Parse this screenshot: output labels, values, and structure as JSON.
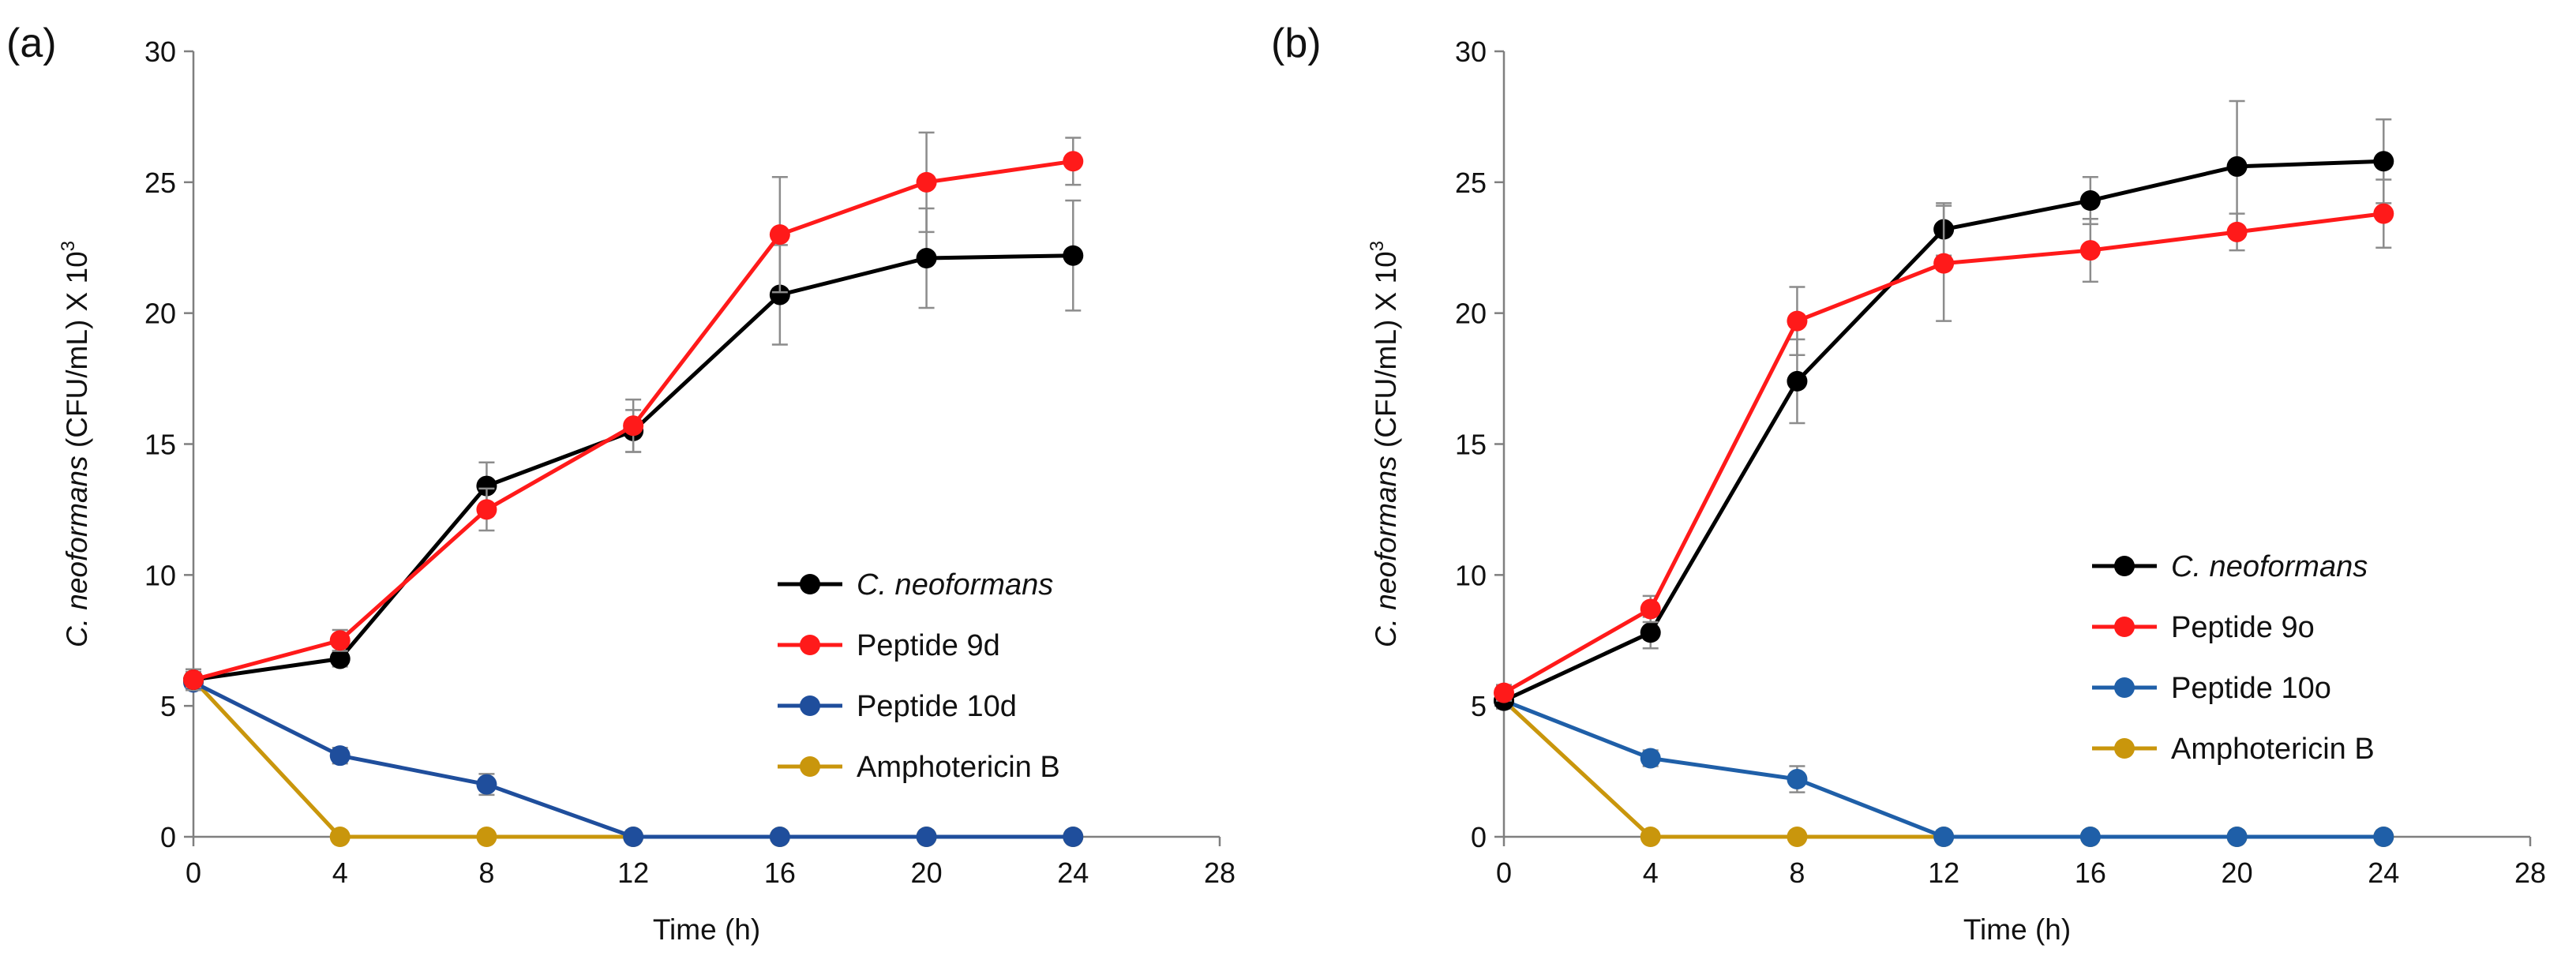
{
  "chart_data": [
    {
      "type": "line",
      "panel_label": "(a)",
      "xlabel": "Time (h)",
      "ylabel": {
        "italic": "C. neoformans",
        "rest": " (CFU/mL) X 10",
        "sup": "3"
      },
      "xlim": [
        0,
        28
      ],
      "ylim": [
        0,
        30
      ],
      "x_ticks": [
        0,
        4,
        8,
        12,
        16,
        20,
        24,
        28
      ],
      "y_ticks": [
        0,
        5,
        10,
        15,
        20,
        25,
        30
      ],
      "legend_position": "center-right",
      "x": [
        0,
        4,
        8,
        12,
        16,
        20,
        24
      ],
      "series": [
        {
          "name": "C. neoformans",
          "italic": true,
          "color": "#000000",
          "values": [
            6.0,
            6.8,
            13.4,
            15.5,
            20.7,
            22.1,
            22.2
          ],
          "errors": [
            0.4,
            0.3,
            0.9,
            0.8,
            1.9,
            1.9,
            2.1
          ]
        },
        {
          "name": "Peptide 9d",
          "italic": false,
          "color": "#ff1a1a",
          "values": [
            6.0,
            7.5,
            12.5,
            15.7,
            23.0,
            25.0,
            25.8
          ],
          "errors": [
            0.3,
            0.4,
            0.8,
            1.0,
            2.2,
            1.9,
            0.9
          ]
        },
        {
          "name": "Peptide 10d",
          "italic": false,
          "color": "#1f4e9c",
          "values": [
            5.9,
            3.1,
            2.0,
            0,
            0,
            0,
            0
          ],
          "errors": [
            0.3,
            0.3,
            0.4,
            0,
            0,
            0,
            0
          ]
        },
        {
          "name": "Amphotericin B",
          "italic": false,
          "color": "#c9960c",
          "values": [
            6.0,
            0,
            0,
            0,
            0,
            0,
            0
          ],
          "errors": [
            0,
            0,
            0,
            0,
            0,
            0,
            0
          ]
        }
      ]
    },
    {
      "type": "line",
      "panel_label": "(b)",
      "xlabel": "Time (h)",
      "ylabel": {
        "italic": "C. neoformans",
        "rest": " (CFU/mL) X 10",
        "sup": "3"
      },
      "xlim": [
        0,
        28
      ],
      "ylim": [
        0,
        30
      ],
      "x_ticks": [
        0,
        4,
        8,
        12,
        16,
        20,
        24,
        28
      ],
      "y_ticks": [
        0,
        5,
        10,
        15,
        20,
        25,
        30
      ],
      "legend_position": "center-right",
      "x": [
        0,
        4,
        8,
        12,
        16,
        20,
        24
      ],
      "series": [
        {
          "name": "C. neoformans",
          "italic": true,
          "color": "#000000",
          "values": [
            5.2,
            7.8,
            17.4,
            23.2,
            24.3,
            25.6,
            25.8
          ],
          "errors": [
            0.3,
            0.6,
            1.6,
            1.0,
            0.9,
            2.5,
            1.6
          ]
        },
        {
          "name": "Peptide 9o",
          "italic": false,
          "color": "#ff1a1a",
          "values": [
            5.5,
            8.7,
            19.7,
            21.9,
            22.4,
            23.1,
            23.8
          ],
          "errors": [
            0.3,
            0.5,
            1.3,
            2.2,
            1.2,
            0.7,
            1.3
          ]
        },
        {
          "name": "Peptide 10o",
          "italic": false,
          "color": "#1f5fa8",
          "values": [
            5.2,
            3.0,
            2.2,
            0,
            0,
            0,
            0
          ],
          "errors": [
            0.3,
            0.3,
            0.5,
            0,
            0,
            0,
            0
          ]
        },
        {
          "name": "Amphotericin B",
          "italic": false,
          "color": "#c9960c",
          "values": [
            5.2,
            0,
            0,
            0,
            0,
            0,
            0
          ],
          "errors": [
            0,
            0,
            0,
            0,
            0,
            0,
            0
          ]
        }
      ]
    }
  ]
}
